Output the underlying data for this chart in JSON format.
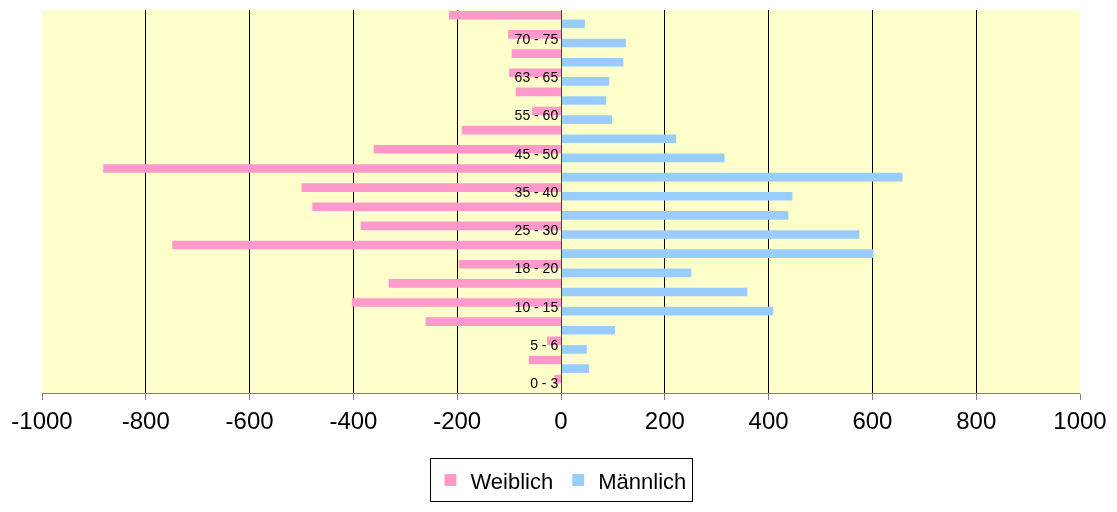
{
  "chart_data": {
    "type": "bar",
    "orientation": "horizontal",
    "categories": [
      null,
      "70 - 75",
      null,
      "63 - 65",
      null,
      "55 - 60",
      null,
      "45 - 50",
      null,
      "35 - 40",
      null,
      "25 - 30",
      null,
      "18 - 20",
      null,
      "10 - 15",
      null,
      "5 - 6",
      null,
      "0 - 3"
    ],
    "series": [
      {
        "name": "Weiblich",
        "color": "#ff99cc",
        "values": [
          -216,
          -102,
          -95,
          -100,
          -87,
          -56,
          -191,
          -361,
          -882,
          -500,
          -479,
          -386,
          -749,
          -197,
          -332,
          -403,
          -261,
          -27,
          -62,
          -13
        ]
      },
      {
        "name": "Männlich",
        "color": "#99ccff",
        "values": [
          46,
          125,
          120,
          93,
          87,
          98,
          222,
          315,
          658,
          446,
          438,
          575,
          602,
          251,
          359,
          409,
          104,
          50,
          54,
          0
        ]
      }
    ],
    "xlim": [
      -1000,
      1000
    ],
    "xticks": [
      -1000,
      -800,
      -600,
      -400,
      -200,
      0,
      200,
      400,
      600,
      800,
      1000
    ],
    "grid": "x",
    "legend": "bottom"
  }
}
